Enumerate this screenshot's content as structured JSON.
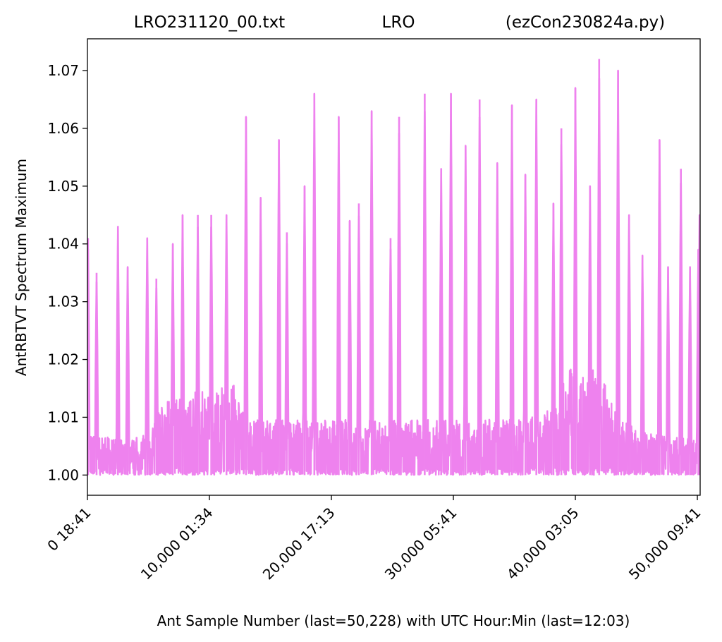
{
  "chart_data": {
    "type": "line",
    "title_left": "LRO231120_00.txt",
    "title_center": "LRO",
    "title_right": "(ezCon230824a.py)",
    "xlabel": "Ant Sample Number (last=50,228) with UTC Hour:Min (last=12:03)",
    "ylabel": "AntRBTVT Spectrum Maximum",
    "xlim": [
      0,
      50228
    ],
    "ylim": [
      0.9965,
      1.0755
    ],
    "yticks": [
      1.0,
      1.01,
      1.02,
      1.03,
      1.04,
      1.05,
      1.06,
      1.07
    ],
    "ytick_labels": [
      "1.00",
      "1.01",
      "1.02",
      "1.03",
      "1.04",
      "1.05",
      "1.06",
      "1.07"
    ],
    "xticks": [
      0,
      10000,
      20000,
      30000,
      40000,
      50000
    ],
    "xtick_labels": [
      "0  18:41",
      "10,000  01:34",
      "20,000  17:13",
      "30,000  05:41",
      "40,000  03:05",
      "50,000  09:41"
    ],
    "grid": false,
    "series_color": "#ee82ee",
    "peaks": [
      {
        "x": 50,
        "y": 1.041
      },
      {
        "x": 750,
        "y": 1.035
      },
      {
        "x": 2500,
        "y": 1.043
      },
      {
        "x": 3300,
        "y": 1.036
      },
      {
        "x": 4900,
        "y": 1.041
      },
      {
        "x": 5650,
        "y": 1.034
      },
      {
        "x": 7000,
        "y": 1.04
      },
      {
        "x": 7800,
        "y": 1.045
      },
      {
        "x": 9050,
        "y": 1.045
      },
      {
        "x": 10150,
        "y": 1.045
      },
      {
        "x": 11400,
        "y": 1.045
      },
      {
        "x": 13000,
        "y": 1.062
      },
      {
        "x": 14200,
        "y": 1.048
      },
      {
        "x": 15700,
        "y": 1.058
      },
      {
        "x": 16350,
        "y": 1.042
      },
      {
        "x": 17800,
        "y": 1.05
      },
      {
        "x": 18600,
        "y": 1.066
      },
      {
        "x": 20600,
        "y": 1.062
      },
      {
        "x": 21500,
        "y": 1.044
      },
      {
        "x": 22250,
        "y": 1.047
      },
      {
        "x": 23300,
        "y": 1.063
      },
      {
        "x": 24850,
        "y": 1.041
      },
      {
        "x": 25550,
        "y": 1.062
      },
      {
        "x": 27650,
        "y": 1.066
      },
      {
        "x": 29000,
        "y": 1.053
      },
      {
        "x": 29800,
        "y": 1.066
      },
      {
        "x": 31000,
        "y": 1.057
      },
      {
        "x": 32150,
        "y": 1.065
      },
      {
        "x": 33600,
        "y": 1.054
      },
      {
        "x": 34800,
        "y": 1.064
      },
      {
        "x": 35900,
        "y": 1.052
      },
      {
        "x": 36800,
        "y": 1.065
      },
      {
        "x": 38200,
        "y": 1.047
      },
      {
        "x": 38850,
        "y": 1.06
      },
      {
        "x": 40000,
        "y": 1.067
      },
      {
        "x": 41200,
        "y": 1.05
      },
      {
        "x": 41950,
        "y": 1.072
      },
      {
        "x": 43500,
        "y": 1.07
      },
      {
        "x": 44400,
        "y": 1.045
      },
      {
        "x": 45500,
        "y": 1.038
      },
      {
        "x": 46900,
        "y": 1.058
      },
      {
        "x": 47600,
        "y": 1.036
      },
      {
        "x": 48650,
        "y": 1.053
      },
      {
        "x": 49400,
        "y": 1.036
      },
      {
        "x": 50080,
        "y": 1.039
      },
      {
        "x": 50180,
        "y": 1.045
      }
    ],
    "baseline": 1.0,
    "background_band": [
      {
        "x": 0,
        "y": 1.006
      },
      {
        "x": 3000,
        "y": 1.005
      },
      {
        "x": 5000,
        "y": 1.006
      },
      {
        "x": 6000,
        "y": 1.01
      },
      {
        "x": 8000,
        "y": 1.012
      },
      {
        "x": 12000,
        "y": 1.013
      },
      {
        "x": 13000,
        "y": 1.008
      },
      {
        "x": 18000,
        "y": 1.008
      },
      {
        "x": 22000,
        "y": 1.008
      },
      {
        "x": 28000,
        "y": 1.008
      },
      {
        "x": 33000,
        "y": 1.008
      },
      {
        "x": 36000,
        "y": 1.008
      },
      {
        "x": 38000,
        "y": 1.01
      },
      {
        "x": 39500,
        "y": 1.015
      },
      {
        "x": 40500,
        "y": 1.017
      },
      {
        "x": 41500,
        "y": 1.016
      },
      {
        "x": 42500,
        "y": 1.013
      },
      {
        "x": 43500,
        "y": 1.008
      },
      {
        "x": 46000,
        "y": 1.006
      },
      {
        "x": 50228,
        "y": 1.005
      }
    ]
  }
}
